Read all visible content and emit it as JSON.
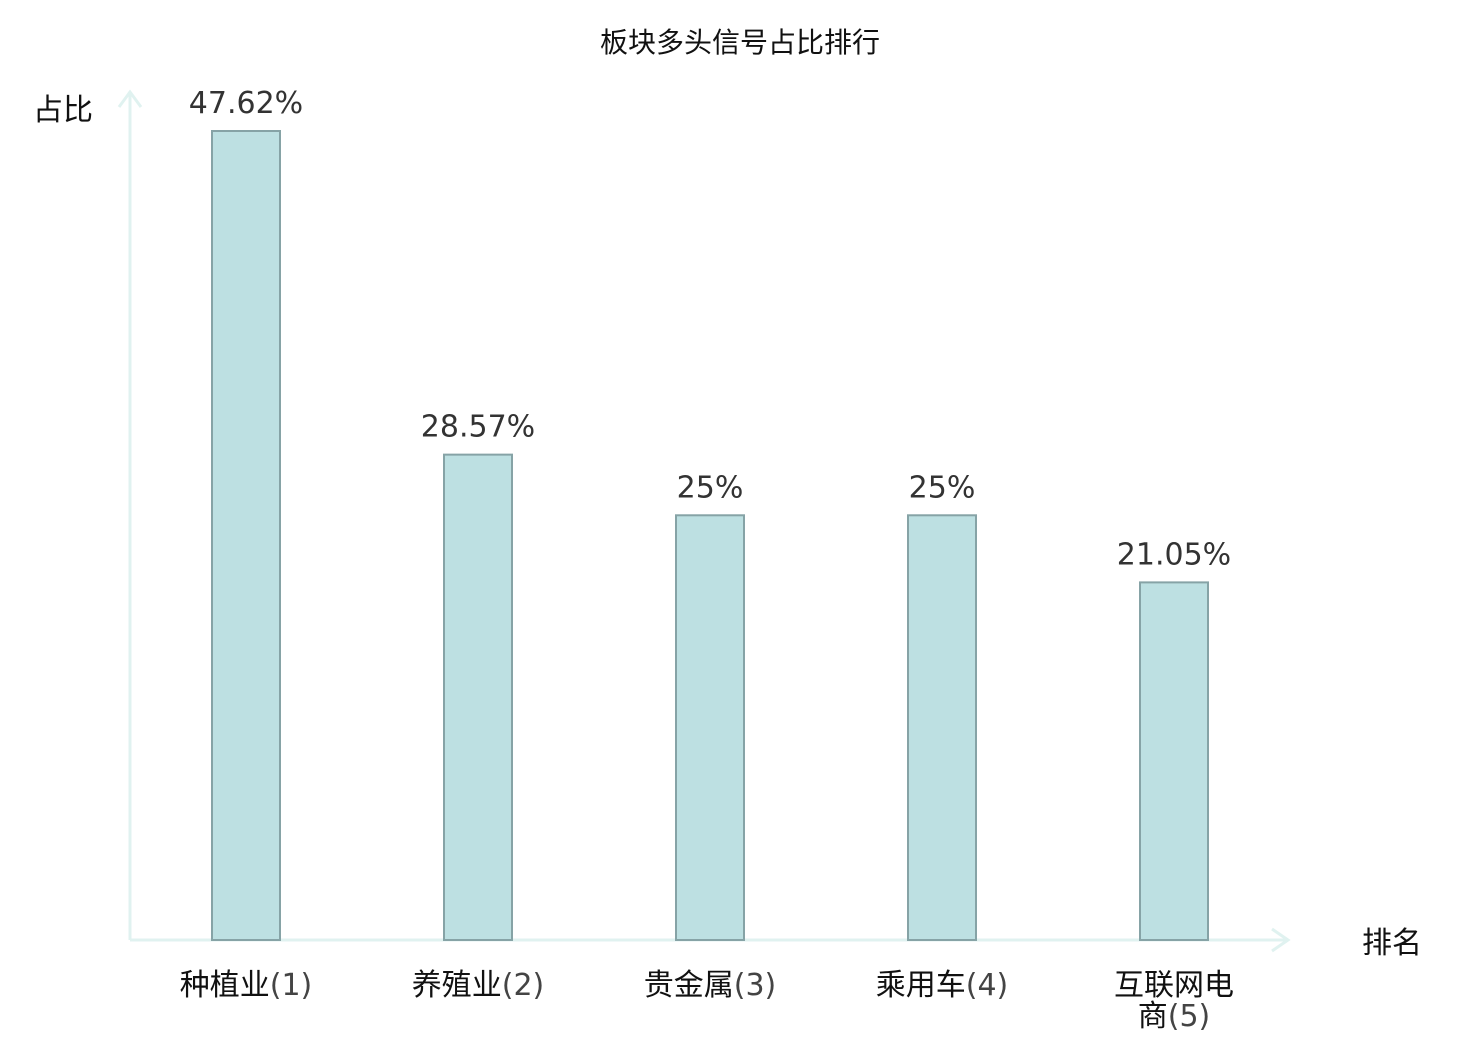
{
  "chart_data": {
    "type": "bar",
    "title": "板块多头信号占比排行",
    "xlabel": "排名",
    "ylabel": "占比",
    "categories": [
      {
        "name": "种植业",
        "rank": "(1)",
        "highlight": true
      },
      {
        "name": "养殖业",
        "rank": "(2)",
        "highlight": false
      },
      {
        "name": "贵金属",
        "rank": "(3)",
        "highlight": false
      },
      {
        "name": "乘用车",
        "rank": "(4)",
        "highlight": false
      },
      {
        "name": "互联网电商",
        "rank": "(5)",
        "highlight": false
      }
    ],
    "values": [
      47.62,
      28.57,
      25,
      25,
      21.05
    ],
    "value_labels": [
      "47.62%",
      "28.57%",
      "25%",
      "25%",
      "21.05%"
    ],
    "ylim": [
      0,
      50
    ],
    "grid": false,
    "legend": "none",
    "colors": {
      "bar_fill": "#bde0e2",
      "bar_stroke": "#86a3a6",
      "axis": "#e0f2f0",
      "highlight_text": "#e0141e",
      "text": "#111111",
      "value_text": "#333333"
    }
  }
}
